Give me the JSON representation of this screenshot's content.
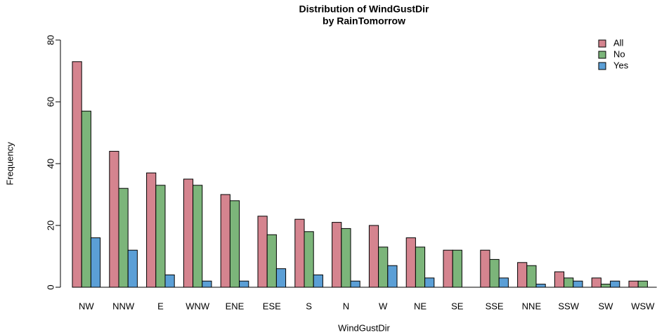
{
  "chart_data": {
    "type": "grouped_bar",
    "title": "Distribution of WindGustDir",
    "subtitle": "by RainTomorrow",
    "x_label": "WindGustDir",
    "y_label": "Frequency",
    "categories": [
      "NW",
      "NNW",
      "E",
      "WNW",
      "ENE",
      "ESE",
      "S",
      "N",
      "W",
      "NE",
      "SE",
      "SSE",
      "NNE",
      "SSW",
      "SW",
      "WSW"
    ],
    "series": [
      {
        "name": "All",
        "color": "#d5848f",
        "values": [
          73,
          44,
          37,
          35,
          30,
          23,
          22,
          21,
          20,
          16,
          12,
          12,
          8,
          5,
          3,
          2
        ]
      },
      {
        "name": "No",
        "color": "#7cb57a",
        "values": [
          57,
          32,
          33,
          33,
          28,
          17,
          18,
          19,
          13,
          13,
          12,
          9,
          7,
          3,
          1,
          2
        ]
      },
      {
        "name": "Yes",
        "color": "#5b9fd6",
        "values": [
          16,
          12,
          4,
          2,
          2,
          6,
          4,
          2,
          7,
          3,
          0,
          3,
          1,
          2,
          2,
          0
        ]
      }
    ],
    "ylim": [
      0,
      80
    ],
    "yticks": [
      0,
      20,
      40,
      60,
      80
    ],
    "legend": "top-right"
  }
}
